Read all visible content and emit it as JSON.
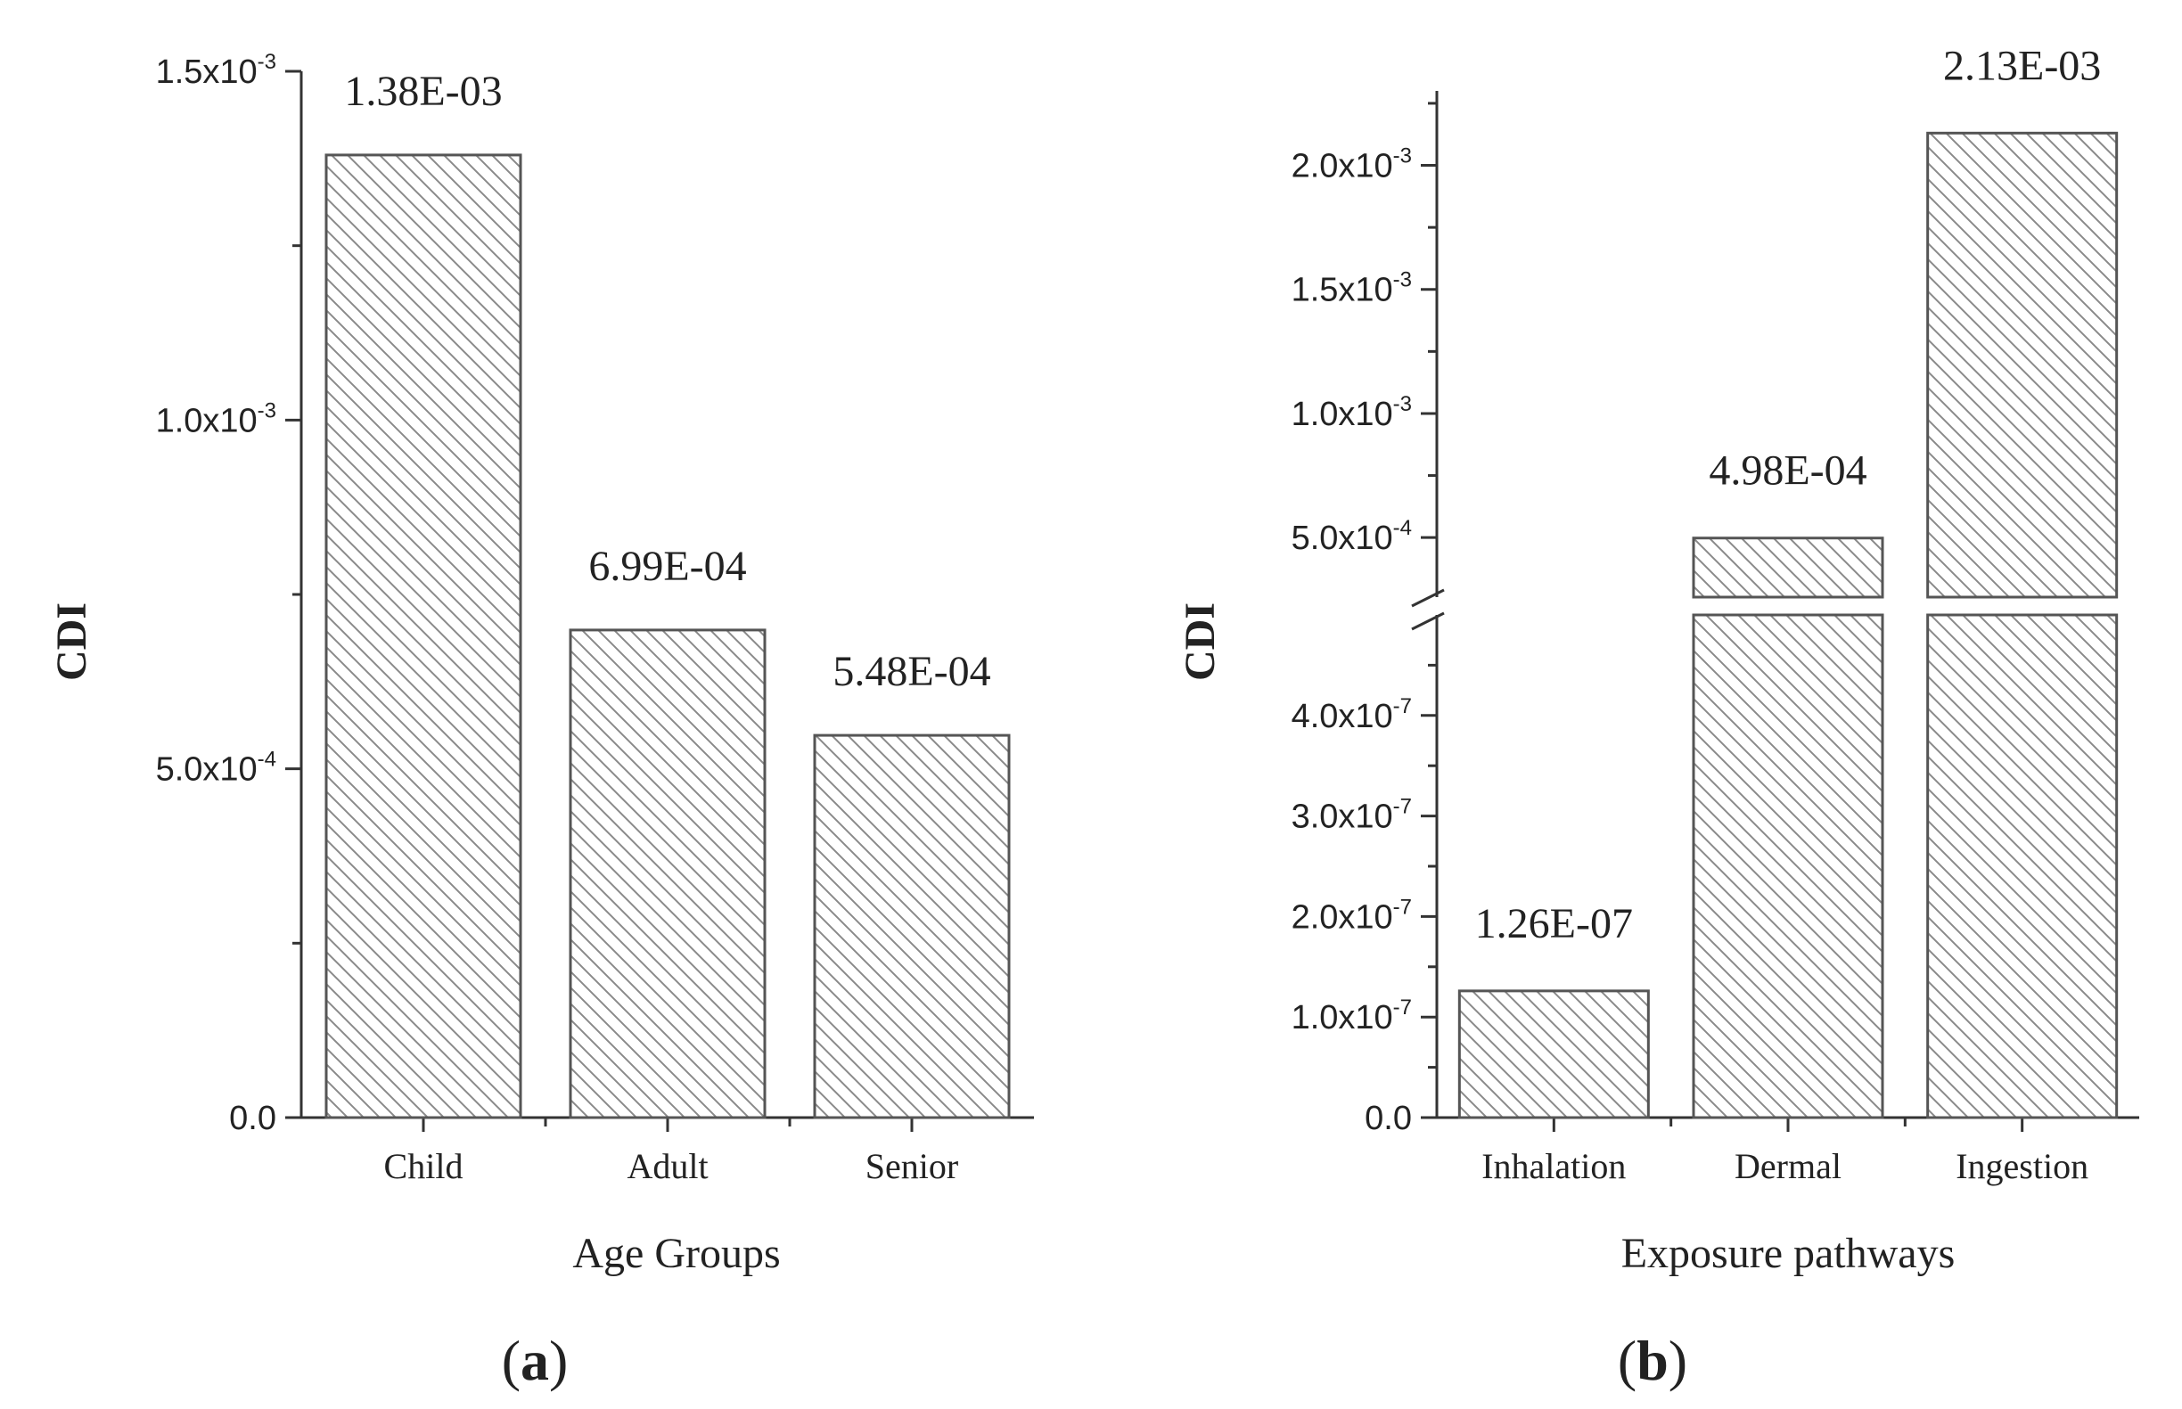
{
  "chart_data": [
    {
      "type": "bar",
      "panel_label": "a",
      "xlabel": "Age Groups",
      "ylabel": "CDI",
      "categories": [
        "Child",
        "Adult",
        "Senior"
      ],
      "values": [
        0.00138,
        0.000699,
        0.000548
      ],
      "value_labels": [
        "1.38E-03",
        "6.99E-04",
        "5.48E-04"
      ],
      "ylim": [
        0,
        0.0015
      ],
      "y_ticks": [
        {
          "value": 0,
          "mantissa": "0.0",
          "exponent": ""
        },
        {
          "value": 0.0005,
          "mantissa": "5.0x10",
          "exponent": "-4"
        },
        {
          "value": 0.001,
          "mantissa": "1.0x10",
          "exponent": "-3"
        },
        {
          "value": 0.0015,
          "mantissa": "1.5x10",
          "exponent": "-3"
        }
      ],
      "bar_fill": "hatched",
      "grid": false
    },
    {
      "type": "bar",
      "panel_label": "b",
      "xlabel": "Exposure pathways",
      "ylabel": "CDI",
      "categories": [
        "Inhalation",
        "Dermal",
        "Ingestion"
      ],
      "values": [
        1.26e-07,
        0.000498,
        0.00213
      ],
      "value_labels": [
        "1.26E-07",
        "4.98E-04",
        "2.13E-03"
      ],
      "y_axis_break": true,
      "ylim_lower": [
        0,
        5e-07
      ],
      "ylim_upper": [
        0.00026,
        0.0023
      ],
      "y_ticks_lower": [
        {
          "value": 0,
          "mantissa": "0.0",
          "exponent": ""
        },
        {
          "value": 1e-07,
          "mantissa": "1.0x10",
          "exponent": "-7"
        },
        {
          "value": 2e-07,
          "mantissa": "2.0x10",
          "exponent": "-7"
        },
        {
          "value": 3e-07,
          "mantissa": "3.0x10",
          "exponent": "-7"
        },
        {
          "value": 4e-07,
          "mantissa": "4.0x10",
          "exponent": "-7"
        }
      ],
      "y_ticks_upper": [
        {
          "value": 0.0005,
          "mantissa": "5.0x10",
          "exponent": "-4"
        },
        {
          "value": 0.001,
          "mantissa": "1.0x10",
          "exponent": "-3"
        },
        {
          "value": 0.0015,
          "mantissa": "1.5x10",
          "exponent": "-3"
        },
        {
          "value": 0.002,
          "mantissa": "2.0x10",
          "exponent": "-3"
        }
      ],
      "bar_fill": "hatched",
      "grid": false
    }
  ],
  "colors": {
    "axis": "#333333",
    "bar_stroke": "#555555",
    "hatch": "#8a8a8a",
    "background": "#ffffff"
  }
}
